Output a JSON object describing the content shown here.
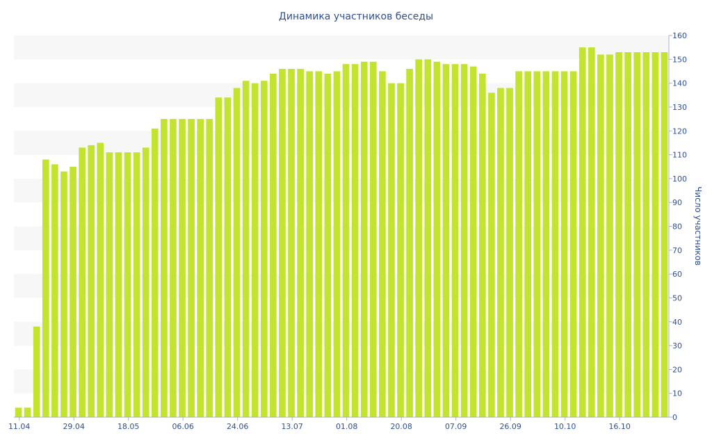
{
  "chart_data": {
    "type": "bar",
    "title": "Динамика участников беседы",
    "ylabel": "Число участников",
    "ylim": [
      0,
      160
    ],
    "yticks": [
      0,
      10,
      20,
      30,
      40,
      50,
      60,
      70,
      80,
      90,
      100,
      110,
      120,
      130,
      140,
      150,
      160
    ],
    "y_axis_position": "right",
    "x_tick_labels": [
      {
        "label": "11.04",
        "index": 0
      },
      {
        "label": "29.04",
        "index": 6
      },
      {
        "label": "18.05",
        "index": 12
      },
      {
        "label": "06.06",
        "index": 18
      },
      {
        "label": "24.06",
        "index": 24
      },
      {
        "label": "13.07",
        "index": 30
      },
      {
        "label": "01.08",
        "index": 36
      },
      {
        "label": "20.08",
        "index": 42
      },
      {
        "label": "07.09",
        "index": 48
      },
      {
        "label": "26.09",
        "index": 54
      },
      {
        "label": "10.10",
        "index": 60
      },
      {
        "label": "16.10",
        "index": 66
      }
    ],
    "values": [
      4,
      4,
      38,
      108,
      106,
      103,
      105,
      113,
      114,
      115,
      111,
      111,
      111,
      111,
      113,
      121,
      125,
      125,
      125,
      125,
      125,
      125,
      134,
      134,
      138,
      141,
      140,
      141,
      144,
      146,
      146,
      146,
      145,
      145,
      144,
      145,
      148,
      148,
      149,
      149,
      145,
      140,
      140,
      146,
      150,
      150,
      149,
      148,
      148,
      148,
      147,
      144,
      136,
      138,
      138,
      145,
      145,
      145,
      145,
      145,
      145,
      145,
      155,
      155,
      152,
      152,
      153,
      153,
      153,
      153,
      153,
      153
    ],
    "bar_color": "#c2e330",
    "band_color": "#f7f7f7",
    "text_color": "#2f4f8f",
    "grid": false
  }
}
